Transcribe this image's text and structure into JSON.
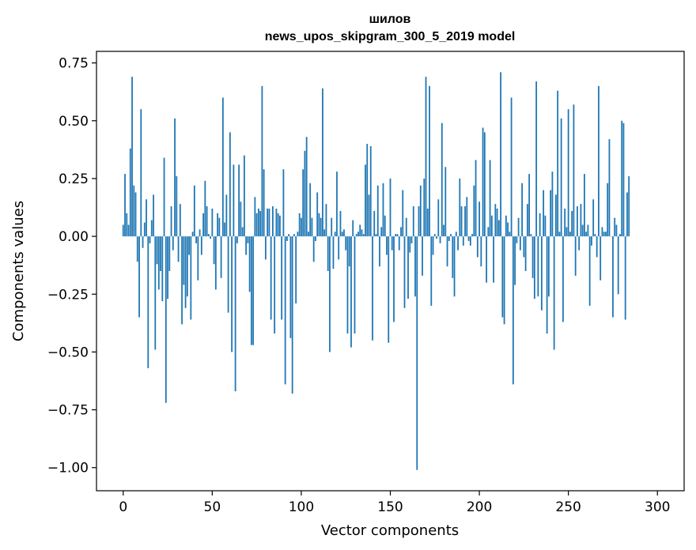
{
  "chart_data": {
    "type": "bar",
    "title_line1": "шилов",
    "title_line2": "news_upos_skipgram_300_5_2019 model",
    "xlabel": "Vector components",
    "ylabel": "Components values",
    "xlim": [
      -15,
      315
    ],
    "ylim": [
      -1.1,
      0.8
    ],
    "xticks": [
      0,
      50,
      100,
      150,
      200,
      250,
      300
    ],
    "xtick_labels": [
      "0",
      "50",
      "100",
      "150",
      "200",
      "250",
      "300"
    ],
    "yticks": [
      0.75,
      0.5,
      0.25,
      0.0,
      -0.25,
      -0.5,
      -0.75,
      -1.0
    ],
    "ytick_labels": [
      "0.75",
      "0.50",
      "0.25",
      "0.00",
      "−0.25",
      "−0.50",
      "−0.75",
      "−1.00"
    ],
    "bar_color": "#1f77b4",
    "series": [
      {
        "name": "шилов",
        "values": [
          0.05,
          0.27,
          0.1,
          0.05,
          0.38,
          0.69,
          0.22,
          0.19,
          -0.11,
          -0.35,
          0.55,
          -0.05,
          0.06,
          0.16,
          -0.57,
          -0.03,
          0.07,
          0.18,
          -0.49,
          -0.12,
          -0.23,
          -0.15,
          -0.28,
          0.34,
          -0.72,
          -0.27,
          -0.15,
          0.13,
          -0.06,
          0.51,
          0.26,
          -0.11,
          0.14,
          -0.38,
          -0.21,
          -0.31,
          -0.26,
          -0.08,
          -0.36,
          0.02,
          0.22,
          -0.03,
          -0.19,
          0.03,
          -0.08,
          0.1,
          0.24,
          0.13,
          0.01,
          -0.01,
          0.12,
          -0.12,
          -0.23,
          0.1,
          0.08,
          -0.18,
          0.6,
          0.06,
          0.18,
          -0.33,
          0.45,
          -0.5,
          0.31,
          -0.67,
          -0.03,
          0.31,
          0.15,
          0.04,
          0.35,
          -0.08,
          -0.03,
          -0.24,
          -0.47,
          -0.47,
          0.17,
          0.1,
          0.12,
          0.11,
          0.65,
          0.29,
          -0.1,
          0.12,
          0.12,
          -0.36,
          0.13,
          -0.42,
          0.12,
          0.1,
          0.09,
          -0.36,
          0.29,
          -0.64,
          -0.02,
          0.01,
          -0.44,
          -0.68,
          0.01,
          -0.29,
          0.02,
          0.1,
          0.08,
          0.29,
          0.37,
          0.43,
          0.02,
          0.23,
          0.08,
          -0.11,
          -0.02,
          0.19,
          0.1,
          0.08,
          0.64,
          0.03,
          0.14,
          -0.15,
          -0.5,
          0.08,
          -0.14,
          0.02,
          0.28,
          -0.1,
          0.11,
          0.02,
          0.03,
          -0.06,
          -0.42,
          -0.13,
          -0.48,
          0.07,
          -0.42,
          0.01,
          0.02,
          0.05,
          0.03,
          0.01,
          0.31,
          0.4,
          0.18,
          0.39,
          -0.45,
          0.11,
          0.01,
          0.22,
          -0.13,
          0.04,
          0.23,
          0.09,
          -0.08,
          -0.46,
          0.25,
          -0.06,
          -0.37,
          0.01,
          0.01,
          -0.06,
          0.04,
          0.2,
          -0.31,
          0.08,
          -0.27,
          -0.07,
          -0.03,
          0.13,
          -0.26,
          -1.01,
          0.13,
          0.22,
          -0.17,
          0.25,
          0.69,
          0.12,
          0.65,
          -0.3,
          -0.08,
          0.01,
          -0.01,
          0.16,
          -0.03,
          0.49,
          0.05,
          0.3,
          -0.13,
          -0.02,
          0.01,
          -0.18,
          -0.26,
          0.02,
          -0.06,
          0.25,
          0.13,
          -0.04,
          0.13,
          0.17,
          -0.02,
          -0.04,
          0.01,
          0.22,
          0.33,
          -0.09,
          0.15,
          -0.13,
          0.47,
          0.45,
          -0.2,
          0.04,
          0.33,
          0.09,
          -0.2,
          0.14,
          0.12,
          0.07,
          0.71,
          -0.35,
          -0.38,
          0.09,
          0.06,
          0.02,
          0.6,
          -0.64,
          -0.21,
          -0.03,
          0.08,
          -0.06,
          0.23,
          -0.09,
          -0.15,
          0.14,
          0.27,
          0.01,
          -0.18,
          -0.27,
          0.67,
          -0.26,
          0.1,
          -0.32,
          0.2,
          0.09,
          -0.42,
          -0.26,
          0.2,
          0.28,
          -0.49,
          0.18,
          0.63,
          0.02,
          0.51,
          -0.37,
          0.12,
          0.04,
          0.55,
          0.02,
          0.11,
          0.57,
          -0.17,
          0.13,
          -0.06,
          0.14,
          0.05,
          0.27,
          0.02,
          0.05,
          -0.3,
          -0.04,
          0.16,
          0.01,
          -0.09,
          0.65,
          -0.19,
          0.04,
          0.02,
          0.02,
          0.23,
          0.42,
          0.0,
          -0.35,
          0.08,
          0.05,
          -0.25,
          0.01,
          0.5,
          0.49,
          -0.36,
          0.19,
          0.26
        ]
      }
    ]
  }
}
